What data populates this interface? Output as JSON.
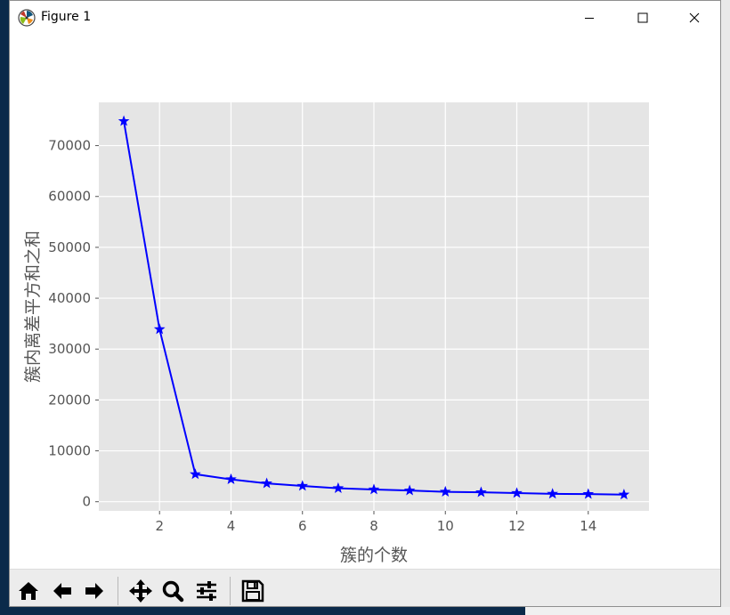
{
  "window": {
    "title": "Figure 1"
  },
  "toolbar": {
    "buttons": [
      {
        "name": "home-button",
        "icon": "home-icon"
      },
      {
        "name": "back-button",
        "icon": "arrow-left-icon"
      },
      {
        "name": "forward-button",
        "icon": "arrow-right-icon"
      },
      {
        "name": "pan-button",
        "icon": "move-icon"
      },
      {
        "name": "zoom-button",
        "icon": "magnifier-icon"
      },
      {
        "name": "configure-subplots-button",
        "icon": "sliders-icon"
      },
      {
        "name": "save-button",
        "icon": "floppy-disk-icon"
      }
    ]
  },
  "chart_data": {
    "type": "line",
    "x": [
      1,
      2,
      3,
      4,
      5,
      6,
      7,
      8,
      9,
      10,
      11,
      12,
      13,
      14,
      15
    ],
    "series": [
      {
        "values": [
          74800,
          33900,
          5400,
          4400,
          3600,
          3100,
          2650,
          2400,
          2200,
          1950,
          1850,
          1700,
          1550,
          1500,
          1400
        ],
        "color": "#0000ff",
        "marker": "star"
      }
    ],
    "xlabel": "簇的个数",
    "ylabel": "簇内离差平方和之和",
    "xlim": [
      0.3,
      15.7
    ],
    "ylim": [
      -1800,
      78500
    ],
    "xticks": [
      2,
      4,
      6,
      8,
      10,
      12,
      14
    ],
    "yticks": [
      0,
      10000,
      20000,
      30000,
      40000,
      50000,
      60000,
      70000
    ],
    "grid": true,
    "style": "ggplot",
    "background": "#e5e5e5"
  }
}
